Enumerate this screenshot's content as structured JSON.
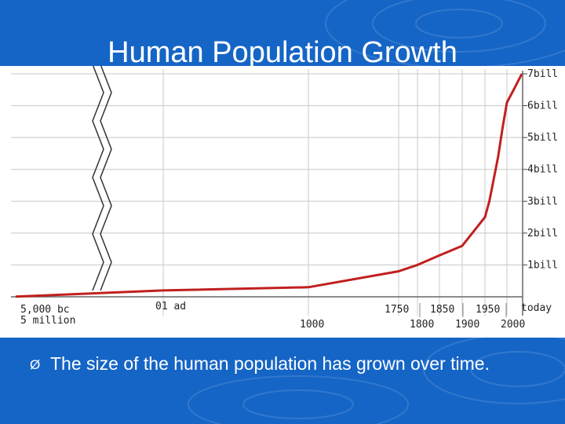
{
  "slide": {
    "title": "Human Population Growth",
    "bullet_marker": "Ø",
    "bullet_text": "The size of the human population has grown over time.",
    "colors": {
      "background": "#1565c6",
      "panel": "#ffffff",
      "text": "#ffffff"
    }
  },
  "chart_data": {
    "type": "line",
    "title": "",
    "xlabel": "",
    "ylabel": "",
    "ylim": [
      0,
      7
    ],
    "y_unit": "billion",
    "y_ticks": [
      {
        "value": 1,
        "label": "1bill"
      },
      {
        "value": 2,
        "label": "2bill"
      },
      {
        "value": 3,
        "label": "3bill"
      },
      {
        "value": 4,
        "label": "4bill"
      },
      {
        "value": 5,
        "label": "5bill"
      },
      {
        "value": 6,
        "label": "6bill"
      },
      {
        "value": 7,
        "label": "7bill"
      }
    ],
    "x_tick_labels": [
      {
        "x": -5000,
        "label": "5,000 bc"
      },
      {
        "x": 1,
        "label": "01 ad"
      },
      {
        "x": 1000,
        "label": "1000"
      },
      {
        "x": 1750,
        "label": "1750"
      },
      {
        "x": 1800,
        "label": "1800"
      },
      {
        "x": 1850,
        "label": "1850"
      },
      {
        "x": 1900,
        "label": "1900"
      },
      {
        "x": 1950,
        "label": "1950"
      },
      {
        "x": 2000,
        "label": "2000"
      },
      {
        "x": 2011,
        "label": "today"
      }
    ],
    "annotations": [
      {
        "x": -5000,
        "text": "5 million"
      }
    ],
    "axis_break": "between 5,000 bc and 01 ad",
    "grid": true,
    "line_color": "#c0201f",
    "series": [
      {
        "x": [
          -5000,
          1,
          1000,
          1750,
          1800,
          1850,
          1900,
          1950,
          1960,
          1970,
          1980,
          1990,
          2000,
          2005,
          2011
        ],
        "y": [
          0.005,
          0.2,
          0.3,
          0.8,
          1.0,
          1.3,
          1.6,
          2.5,
          3.0,
          3.7,
          4.4,
          5.3,
          6.1,
          6.5,
          7.0
        ]
      }
    ]
  }
}
